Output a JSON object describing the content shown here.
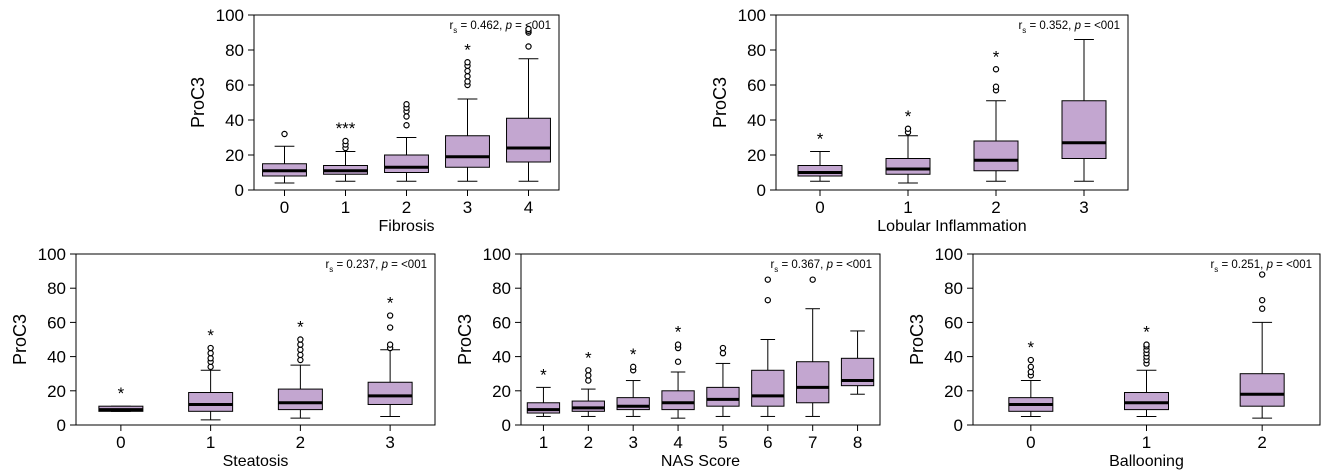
{
  "chart_data": [
    {
      "type": "box",
      "xlabel": "Fibrosis",
      "ylabel": "ProC3",
      "ylim": [
        0,
        100
      ],
      "yticks": [
        0,
        20,
        40,
        60,
        80,
        100
      ],
      "stat": {
        "r": "r",
        "s": "s",
        "rest": " = 0.462, ",
        "p": "p",
        "ptail": " = <001"
      },
      "categories": [
        "0",
        "1",
        "2",
        "3",
        "4"
      ],
      "boxes": [
        {
          "whislo": 4,
          "q1": 8,
          "med": 11,
          "q3": 15,
          "whishi": 25,
          "fliers": [
            32
          ],
          "star": ""
        },
        {
          "whislo": 5,
          "q1": 9,
          "med": 11,
          "q3": 14,
          "whishi": 22,
          "fliers": [
            24,
            26,
            28
          ],
          "star": "***"
        },
        {
          "whislo": 5,
          "q1": 10,
          "med": 13,
          "q3": 20,
          "whishi": 30,
          "fliers": [
            37,
            42,
            45,
            47,
            49
          ],
          "star": ""
        },
        {
          "whislo": 5,
          "q1": 13,
          "med": 19,
          "q3": 31,
          "whishi": 52,
          "fliers": [
            60,
            62,
            65,
            68,
            71,
            73
          ],
          "star": "*"
        },
        {
          "whislo": 5,
          "q1": 16,
          "med": 24,
          "q3": 41,
          "whishi": 75,
          "fliers": [
            82,
            90,
            91,
            92
          ],
          "star": ""
        }
      ]
    },
    {
      "type": "box",
      "xlabel": "Lobular Inflammation",
      "ylabel": "ProC3",
      "ylim": [
        0,
        100
      ],
      "yticks": [
        0,
        20,
        40,
        60,
        80,
        100
      ],
      "stat": {
        "r": "r",
        "s": "s",
        "rest": " = 0.352, ",
        "p": "p",
        "ptail": " = <001"
      },
      "categories": [
        "0",
        "1",
        "2",
        "3"
      ],
      "boxes": [
        {
          "whislo": 5,
          "q1": 8,
          "med": 10,
          "q3": 14,
          "whishi": 22,
          "fliers": [],
          "star": "*"
        },
        {
          "whislo": 4,
          "q1": 9,
          "med": 12,
          "q3": 18,
          "whishi": 31,
          "fliers": [
            33,
            35
          ],
          "star": "*"
        },
        {
          "whislo": 5,
          "q1": 11,
          "med": 17,
          "q3": 28,
          "whishi": 51,
          "fliers": [
            57,
            59,
            69
          ],
          "star": "*"
        },
        {
          "whislo": 5,
          "q1": 18,
          "med": 27,
          "q3": 51,
          "whishi": 86,
          "fliers": [],
          "star": ""
        }
      ]
    },
    {
      "type": "box",
      "xlabel": "Steatosis",
      "ylabel": "ProC3",
      "ylim": [
        0,
        100
      ],
      "yticks": [
        0,
        20,
        40,
        60,
        80,
        100
      ],
      "stat": {
        "r": "r",
        "s": "s",
        "rest": " = 0.237, ",
        "p": "p",
        "ptail": " = <001"
      },
      "categories": [
        "0",
        "1",
        "2",
        "3"
      ],
      "boxes": [
        {
          "whislo": 8,
          "q1": 8,
          "med": 9,
          "q3": 11,
          "whishi": 11,
          "fliers": [],
          "star": "*"
        },
        {
          "whislo": 3,
          "q1": 8,
          "med": 12,
          "q3": 19,
          "whishi": 32,
          "fliers": [
            34,
            37,
            39,
            42,
            45
          ],
          "star": "*"
        },
        {
          "whislo": 4,
          "q1": 9,
          "med": 13,
          "q3": 21,
          "whishi": 35,
          "fliers": [
            38,
            41,
            44,
            47,
            50
          ],
          "star": "*"
        },
        {
          "whislo": 5,
          "q1": 12,
          "med": 17,
          "q3": 25,
          "whishi": 44,
          "fliers": [
            45,
            47,
            57,
            64
          ],
          "star": "*"
        }
      ]
    },
    {
      "type": "box",
      "xlabel": "NAS Score",
      "ylabel": "ProC3",
      "ylim": [
        0,
        100
      ],
      "yticks": [
        0,
        20,
        40,
        60,
        80,
        100
      ],
      "stat": {
        "r": "r",
        "s": "s",
        "rest": " = 0.367, ",
        "p": "p",
        "ptail": " = <001"
      },
      "categories": [
        "1",
        "2",
        "3",
        "4",
        "5",
        "6",
        "7",
        "8"
      ],
      "boxes": [
        {
          "whislo": 5,
          "q1": 7,
          "med": 9,
          "q3": 13,
          "whishi": 22,
          "fliers": [],
          "star": "*"
        },
        {
          "whislo": 5,
          "q1": 8,
          "med": 10,
          "q3": 14,
          "whishi": 21,
          "fliers": [
            26,
            29,
            32
          ],
          "star": "*"
        },
        {
          "whislo": 5,
          "q1": 9,
          "med": 11,
          "q3": 16,
          "whishi": 26,
          "fliers": [
            32,
            34
          ],
          "star": "*"
        },
        {
          "whislo": 4,
          "q1": 9,
          "med": 13,
          "q3": 20,
          "whishi": 31,
          "fliers": [
            37,
            45,
            47
          ],
          "star": "*"
        },
        {
          "whislo": 5,
          "q1": 11,
          "med": 15,
          "q3": 22,
          "whishi": 36,
          "fliers": [
            42,
            45
          ],
          "star": ""
        },
        {
          "whislo": 5,
          "q1": 11,
          "med": 17,
          "q3": 32,
          "whishi": 50,
          "fliers": [
            73,
            85
          ],
          "star": ""
        },
        {
          "whislo": 5,
          "q1": 13,
          "med": 22,
          "q3": 37,
          "whishi": 68,
          "fliers": [
            85
          ],
          "star": ""
        },
        {
          "whislo": 18,
          "q1": 23,
          "med": 26,
          "q3": 39,
          "whishi": 55,
          "fliers": [],
          "star": ""
        }
      ]
    },
    {
      "type": "box",
      "xlabel": "Ballooning",
      "ylabel": "ProC3",
      "ylim": [
        0,
        100
      ],
      "yticks": [
        0,
        20,
        40,
        60,
        80,
        100
      ],
      "stat": {
        "r": "r",
        "s": "s",
        "rest": " = 0.251, ",
        "p": "p",
        "ptail": " = <001"
      },
      "categories": [
        "0",
        "1",
        "2"
      ],
      "boxes": [
        {
          "whislo": 5,
          "q1": 8,
          "med": 12,
          "q3": 16,
          "whishi": 26,
          "fliers": [
            29,
            31,
            34,
            38
          ],
          "star": "*"
        },
        {
          "whislo": 5,
          "q1": 9,
          "med": 13,
          "q3": 19,
          "whishi": 32,
          "fliers": [
            36,
            38,
            40,
            42,
            44,
            46,
            47
          ],
          "star": "*"
        },
        {
          "whislo": 4,
          "q1": 11,
          "med": 18,
          "q3": 30,
          "whishi": 60,
          "fliers": [
            68,
            73,
            88
          ],
          "star": ""
        }
      ]
    }
  ]
}
